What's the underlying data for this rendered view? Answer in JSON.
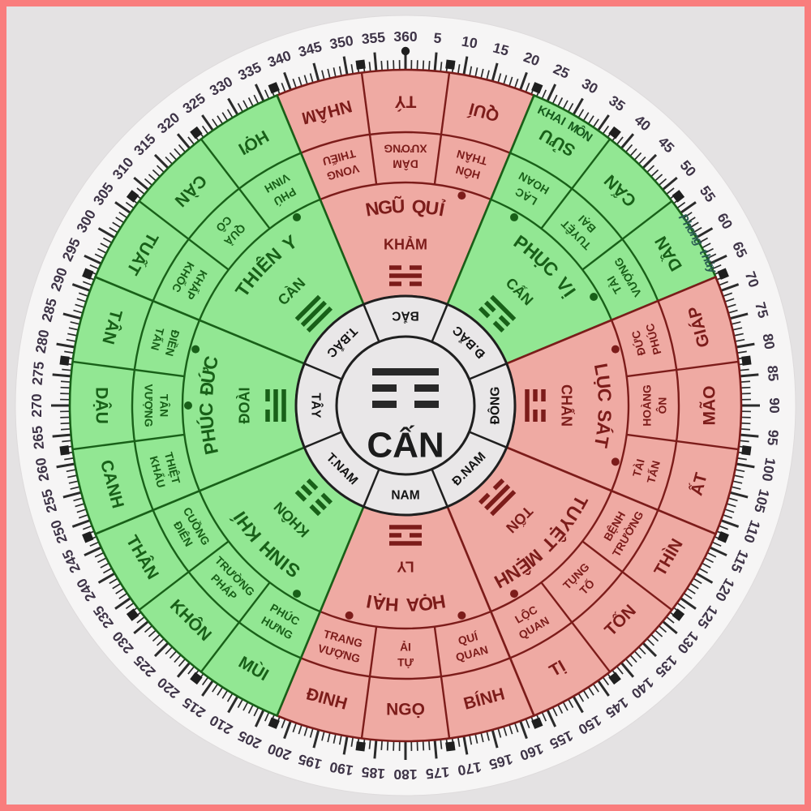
{
  "page": {
    "background": "#e4e2e3",
    "frame_color": "#f97d7d",
    "disc_color": "#f6f5f5"
  },
  "colors": {
    "green_fill": "#92e793",
    "green_line": "#186018",
    "red_fill": "#efaaa3",
    "red_line": "#7c1c1a",
    "ring_bg": "#e9e7e8",
    "ring_line": "#1f1f1f",
    "tick": "#2b2b2b",
    "degree_text": "#3e3447",
    "marker": "#1f1f1f"
  },
  "center": {
    "label": "CẤN",
    "trigram": [
      1,
      0,
      0
    ]
  },
  "degree_ring": {
    "label_min": 5,
    "label_max": 360,
    "label_step": 5,
    "tick_step": 1,
    "boundary_marker_start": 7.5,
    "boundary_marker_step": 15,
    "north_marker_angle": 0
  },
  "directions": [
    {
      "label": "BẮC",
      "angle": 0
    },
    {
      "label": "Đ.BẮC",
      "angle": 45
    },
    {
      "label": "ĐÔNG",
      "angle": 90
    },
    {
      "label": "Đ.NAM",
      "angle": 135
    },
    {
      "label": "NAM",
      "angle": 180
    },
    {
      "label": "T.NAM",
      "angle": 225
    },
    {
      "label": "TÂY",
      "angle": 270
    },
    {
      "label": "T.BẮC",
      "angle": 315
    }
  ],
  "sectors": [
    {
      "name": "KHẢM",
      "star": "NGŨ QUỈ",
      "color": "red",
      "trigram": [
        0,
        1,
        0
      ],
      "start": 337.5,
      "mountains": [
        {
          "name": "NHÂM",
          "fortune": [
            "THIẾU",
            "VONG"
          ],
          "dot": false
        },
        {
          "name": "TÝ",
          "fortune": [
            "XƯƠNG",
            "DÂM"
          ],
          "dot": false
        },
        {
          "name": "QUÍ",
          "fortune": [
            "THÂN",
            "HÔN"
          ],
          "dot": true
        }
      ]
    },
    {
      "name": "CẤN",
      "star": "PHỤC VỊ",
      "color": "green",
      "trigram": [
        1,
        0,
        0
      ],
      "start": 22.5,
      "mountains": [
        {
          "name": "SỬU",
          "fortune": [
            "HOAN",
            "LẠC"
          ],
          "dot": true
        },
        {
          "name": "CẤN",
          "fortune": [
            "BẠI",
            "TUYỆT"
          ],
          "dot": false
        },
        {
          "name": "DẦN",
          "fortune": [
            "VƯỢNG",
            "TÀI"
          ],
          "dot": true
        }
      ]
    },
    {
      "name": "CHẤN",
      "star": "LỤC SÁT",
      "color": "red",
      "trigram": [
        0,
        0,
        1
      ],
      "start": 67.5,
      "mountains": [
        {
          "name": "GIÁP",
          "fortune": [
            "PHÚC",
            "ĐỨC"
          ],
          "dot": true
        },
        {
          "name": "MÃO",
          "fortune": [
            "ÔN",
            "HOÀNG"
          ],
          "dot": false
        },
        {
          "name": "ẤT",
          "fortune": [
            "TẤN",
            "TÀI"
          ],
          "dot": true
        }
      ]
    },
    {
      "name": "TỐN",
      "star": "TUYỆT MỆNH",
      "color": "red",
      "trigram": [
        1,
        1,
        0
      ],
      "start": 112.5,
      "mountains": [
        {
          "name": "THÌN",
          "fortune": [
            "TRƯỜNG",
            "BỆNH"
          ],
          "dot": false
        },
        {
          "name": "TỐN",
          "fortune": [
            "TỐ",
            "TỤNG"
          ],
          "dot": false
        },
        {
          "name": "TỊ",
          "fortune": [
            "QUAN",
            "LỘC"
          ],
          "dot": true
        }
      ]
    },
    {
      "name": "LY",
      "star": "HỌA HẠI",
      "color": "red",
      "trigram": [
        1,
        0,
        1
      ],
      "start": 157.5,
      "mountains": [
        {
          "name": "BÍNH",
          "fortune": [
            "QUAN",
            "QUÍ"
          ],
          "dot": true
        },
        {
          "name": "NGỌ",
          "fortune": [
            "TỰ",
            "ẢI"
          ],
          "dot": false
        },
        {
          "name": "ĐINH",
          "fortune": [
            "VƯỢNG",
            "TRANG"
          ],
          "dot": true
        }
      ]
    },
    {
      "name": "KHÔN",
      "star": "SINH KHÍ",
      "color": "green",
      "trigram": [
        0,
        0,
        0
      ],
      "start": 202.5,
      "mountains": [
        {
          "name": "MÙI",
          "fortune": [
            "HƯNG",
            "PHÚC"
          ],
          "dot": true
        },
        {
          "name": "KHÔN",
          "fortune": [
            "PHÁP",
            "TRƯỜNG"
          ],
          "dot": false
        },
        {
          "name": "THÂN",
          "fortune": [
            "ĐIÊN",
            "CUỒNG"
          ],
          "dot": false
        }
      ]
    },
    {
      "name": "ĐOÀI",
      "star": "PHÚC ĐỨC",
      "color": "green",
      "trigram": [
        0,
        1,
        1
      ],
      "start": 247.5,
      "mountains": [
        {
          "name": "CANH",
          "fortune": [
            "KHẨU",
            "THIỆT"
          ],
          "dot": false
        },
        {
          "name": "DẬU",
          "fortune": [
            "VƯỢNG",
            "TÂN"
          ],
          "dot": true
        },
        {
          "name": "TÂN",
          "fortune": [
            "TẤN",
            "ĐIỀN"
          ],
          "dot": true
        }
      ]
    },
    {
      "name": "CÀN",
      "star": "THIÊN Y",
      "color": "green",
      "trigram": [
        1,
        1,
        1
      ],
      "start": 292.5,
      "mountains": [
        {
          "name": "TUẤT",
          "fortune": [
            "KHỐC",
            "KHẤP"
          ],
          "dot": false
        },
        {
          "name": "CÀN",
          "fortune": [
            "CÔ",
            "QUẢ"
          ],
          "dot": false
        },
        {
          "name": "HỢI",
          "fortune": [
            "VINH",
            "PHÚ"
          ],
          "dot": true
        }
      ]
    }
  ],
  "annotations": [
    {
      "text": "KHAI MÔN",
      "angle": 29.5,
      "radius": 401,
      "color": "#14591b",
      "italic": false,
      "size": 15
    },
    {
      "text": "Phong thủy",
      "angle": 61,
      "radius": 414,
      "color": "#2a5c52",
      "italic": true,
      "size": 15
    }
  ]
}
